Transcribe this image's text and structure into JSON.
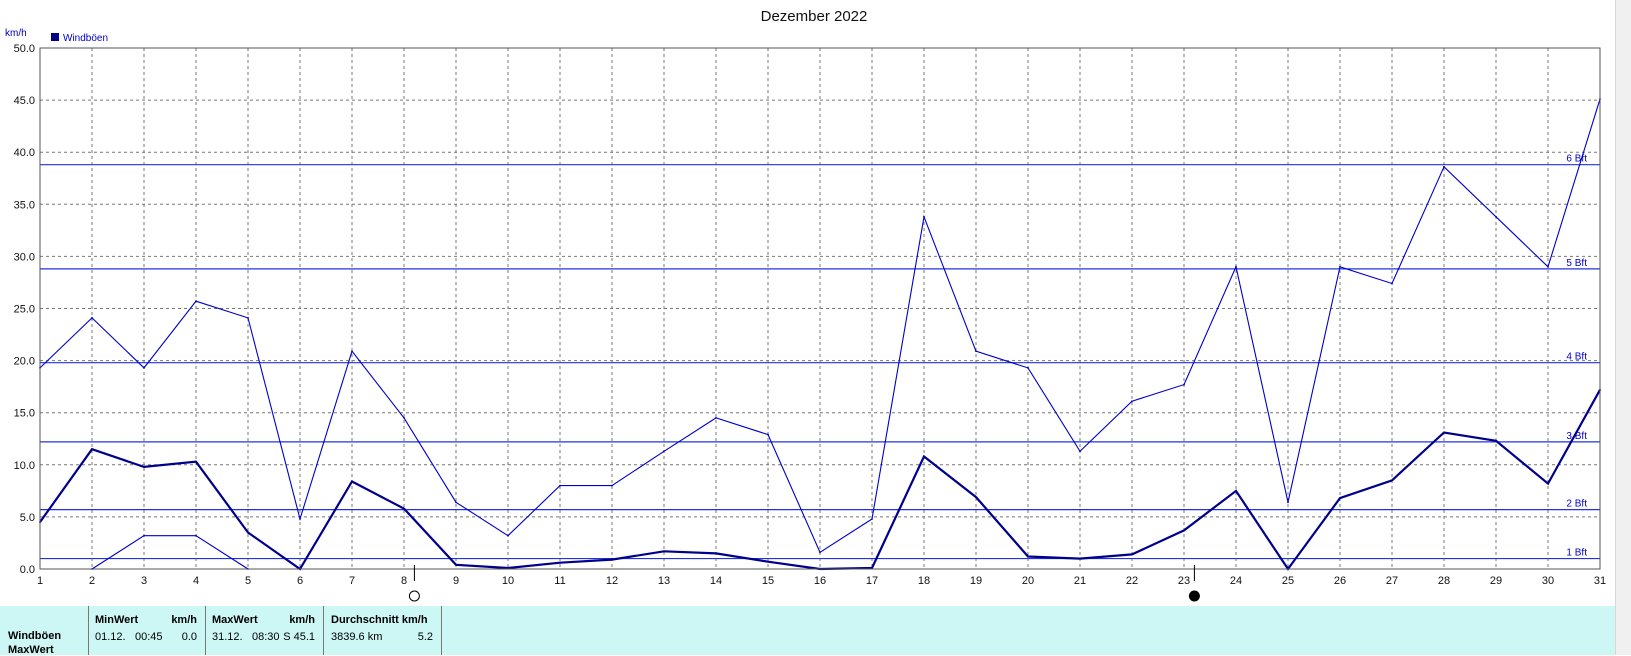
{
  "chart_data": {
    "type": "line",
    "title": "Dezember 2022",
    "ylabel": "km/h",
    "ylim": [
      0,
      50
    ],
    "yticks": [
      "0.0",
      "5.0",
      "10.0",
      "15.0",
      "20.0",
      "25.0",
      "30.0",
      "35.0",
      "40.0",
      "45.0",
      "50.0"
    ],
    "x": [
      1,
      2,
      3,
      4,
      5,
      6,
      7,
      8,
      9,
      10,
      11,
      12,
      13,
      14,
      15,
      16,
      17,
      18,
      19,
      20,
      21,
      22,
      23,
      24,
      25,
      26,
      27,
      28,
      29,
      30,
      31
    ],
    "legend": [
      "Windböen"
    ],
    "grid": true,
    "series": [
      {
        "name": "Windböen",
        "style": "max",
        "values": [
          19.3,
          24.1,
          19.3,
          25.7,
          24.1,
          4.8,
          20.9,
          14.5,
          6.4,
          3.2,
          8.0,
          8.0,
          11.3,
          14.5,
          12.9,
          1.6,
          4.8,
          33.8,
          20.9,
          19.3,
          11.3,
          16.1,
          17.7,
          29.0,
          6.4,
          29.0,
          27.4,
          38.6,
          33.8,
          29.0,
          45.1
        ]
      },
      {
        "style": "avg",
        "values": [
          4.5,
          11.5,
          9.8,
          10.3,
          3.5,
          0.0,
          8.4,
          5.8,
          0.4,
          0.1,
          0.6,
          0.9,
          1.7,
          1.5,
          0.7,
          0.0,
          0.1,
          10.8,
          6.9,
          1.2,
          1.0,
          1.4,
          3.7,
          7.5,
          0.0,
          6.8,
          8.5,
          13.1,
          12.3,
          8.2,
          17.2
        ]
      },
      {
        "style": "min",
        "values": [
          null,
          0.0,
          3.2,
          3.2,
          0.0,
          null,
          null,
          null,
          null,
          null,
          null,
          null,
          null,
          null,
          null,
          null,
          null,
          null,
          null,
          null,
          null,
          null,
          null,
          null,
          null,
          null,
          null,
          null,
          null,
          null,
          null
        ]
      }
    ],
    "beaufort_lines": [
      {
        "label": "1 Bft",
        "y": 1.0
      },
      {
        "label": "2 Bft",
        "y": 5.7
      },
      {
        "label": "3 Bft",
        "y": 12.2
      },
      {
        "label": "4 Bft",
        "y": 19.8
      },
      {
        "label": "5 Bft",
        "y": 28.8
      },
      {
        "label": "6 Bft",
        "y": 38.8
      }
    ],
    "moon_phases": [
      {
        "day": 8,
        "phase": "full"
      },
      {
        "day": 23,
        "phase": "new"
      }
    ],
    "colors": {
      "line": "#00008b",
      "thin": "#0000cc",
      "bft": "#2233dd",
      "grid": "#777777"
    }
  },
  "stats": {
    "row_label_1": "Windböen",
    "row_label_2": "MaxWert",
    "min_header": "MinWert",
    "min_unit": "km/h",
    "min_date": "01.12.",
    "min_time": "00:45",
    "min_value": "0.0",
    "max_header": "MaxWert",
    "max_unit": "km/h",
    "max_date": "31.12.",
    "max_time": "08:30",
    "max_value": "S 45.1",
    "avg_header": "Durchschnitt km/h",
    "avg_distance": "3839.6 km",
    "avg_value": "5.2"
  }
}
